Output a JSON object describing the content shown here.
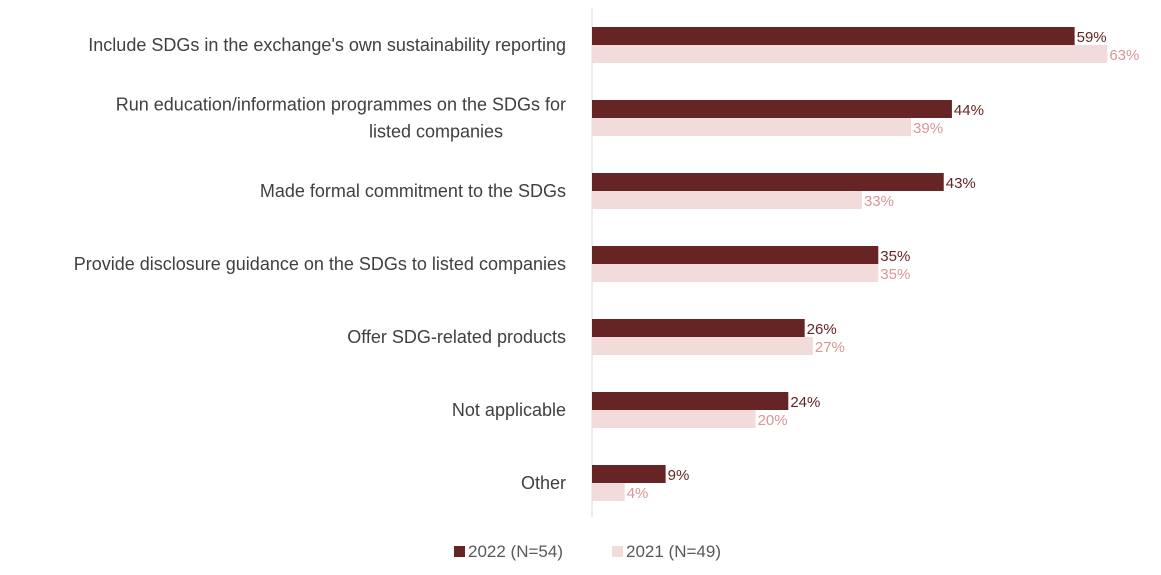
{
  "chart_data": {
    "type": "bar",
    "orientation": "horizontal",
    "title": "",
    "xlabel": "",
    "ylabel": "",
    "categories": [
      [
        "Include SDGs in the exchange's own sustainability reporting"
      ],
      [
        "Run education/information programmes on the SDGs for",
        "listed companies"
      ],
      [
        "Made formal commitment to the SDGs"
      ],
      [
        "Provide disclosure guidance on the SDGs to listed companies"
      ],
      [
        "Offer SDG-related products"
      ],
      [
        "Not applicable"
      ],
      [
        "Other"
      ]
    ],
    "series": [
      {
        "name": "2022 (N=54)",
        "color": "#662424",
        "label_color": "#662424",
        "values": [
          59,
          44,
          43,
          35,
          26,
          24,
          9
        ],
        "labels": [
          "59%",
          "44%",
          "43%",
          "35%",
          "26%",
          "24%",
          "9%"
        ]
      },
      {
        "name": "2021 (N=49)",
        "color": "#F2DCDB",
        "label_color": "#D99694",
        "values": [
          63,
          39,
          33,
          35,
          27,
          20,
          4
        ],
        "labels": [
          "63%",
          "39%",
          "33%",
          "35%",
          "27%",
          "20%",
          "4%"
        ]
      }
    ],
    "xlim": [
      0,
      100
    ],
    "grid": false,
    "axis_color": "#D9D9D9",
    "category_label_color": "#404040",
    "legend": {
      "position": "bottom",
      "text_color": "#595959"
    }
  }
}
